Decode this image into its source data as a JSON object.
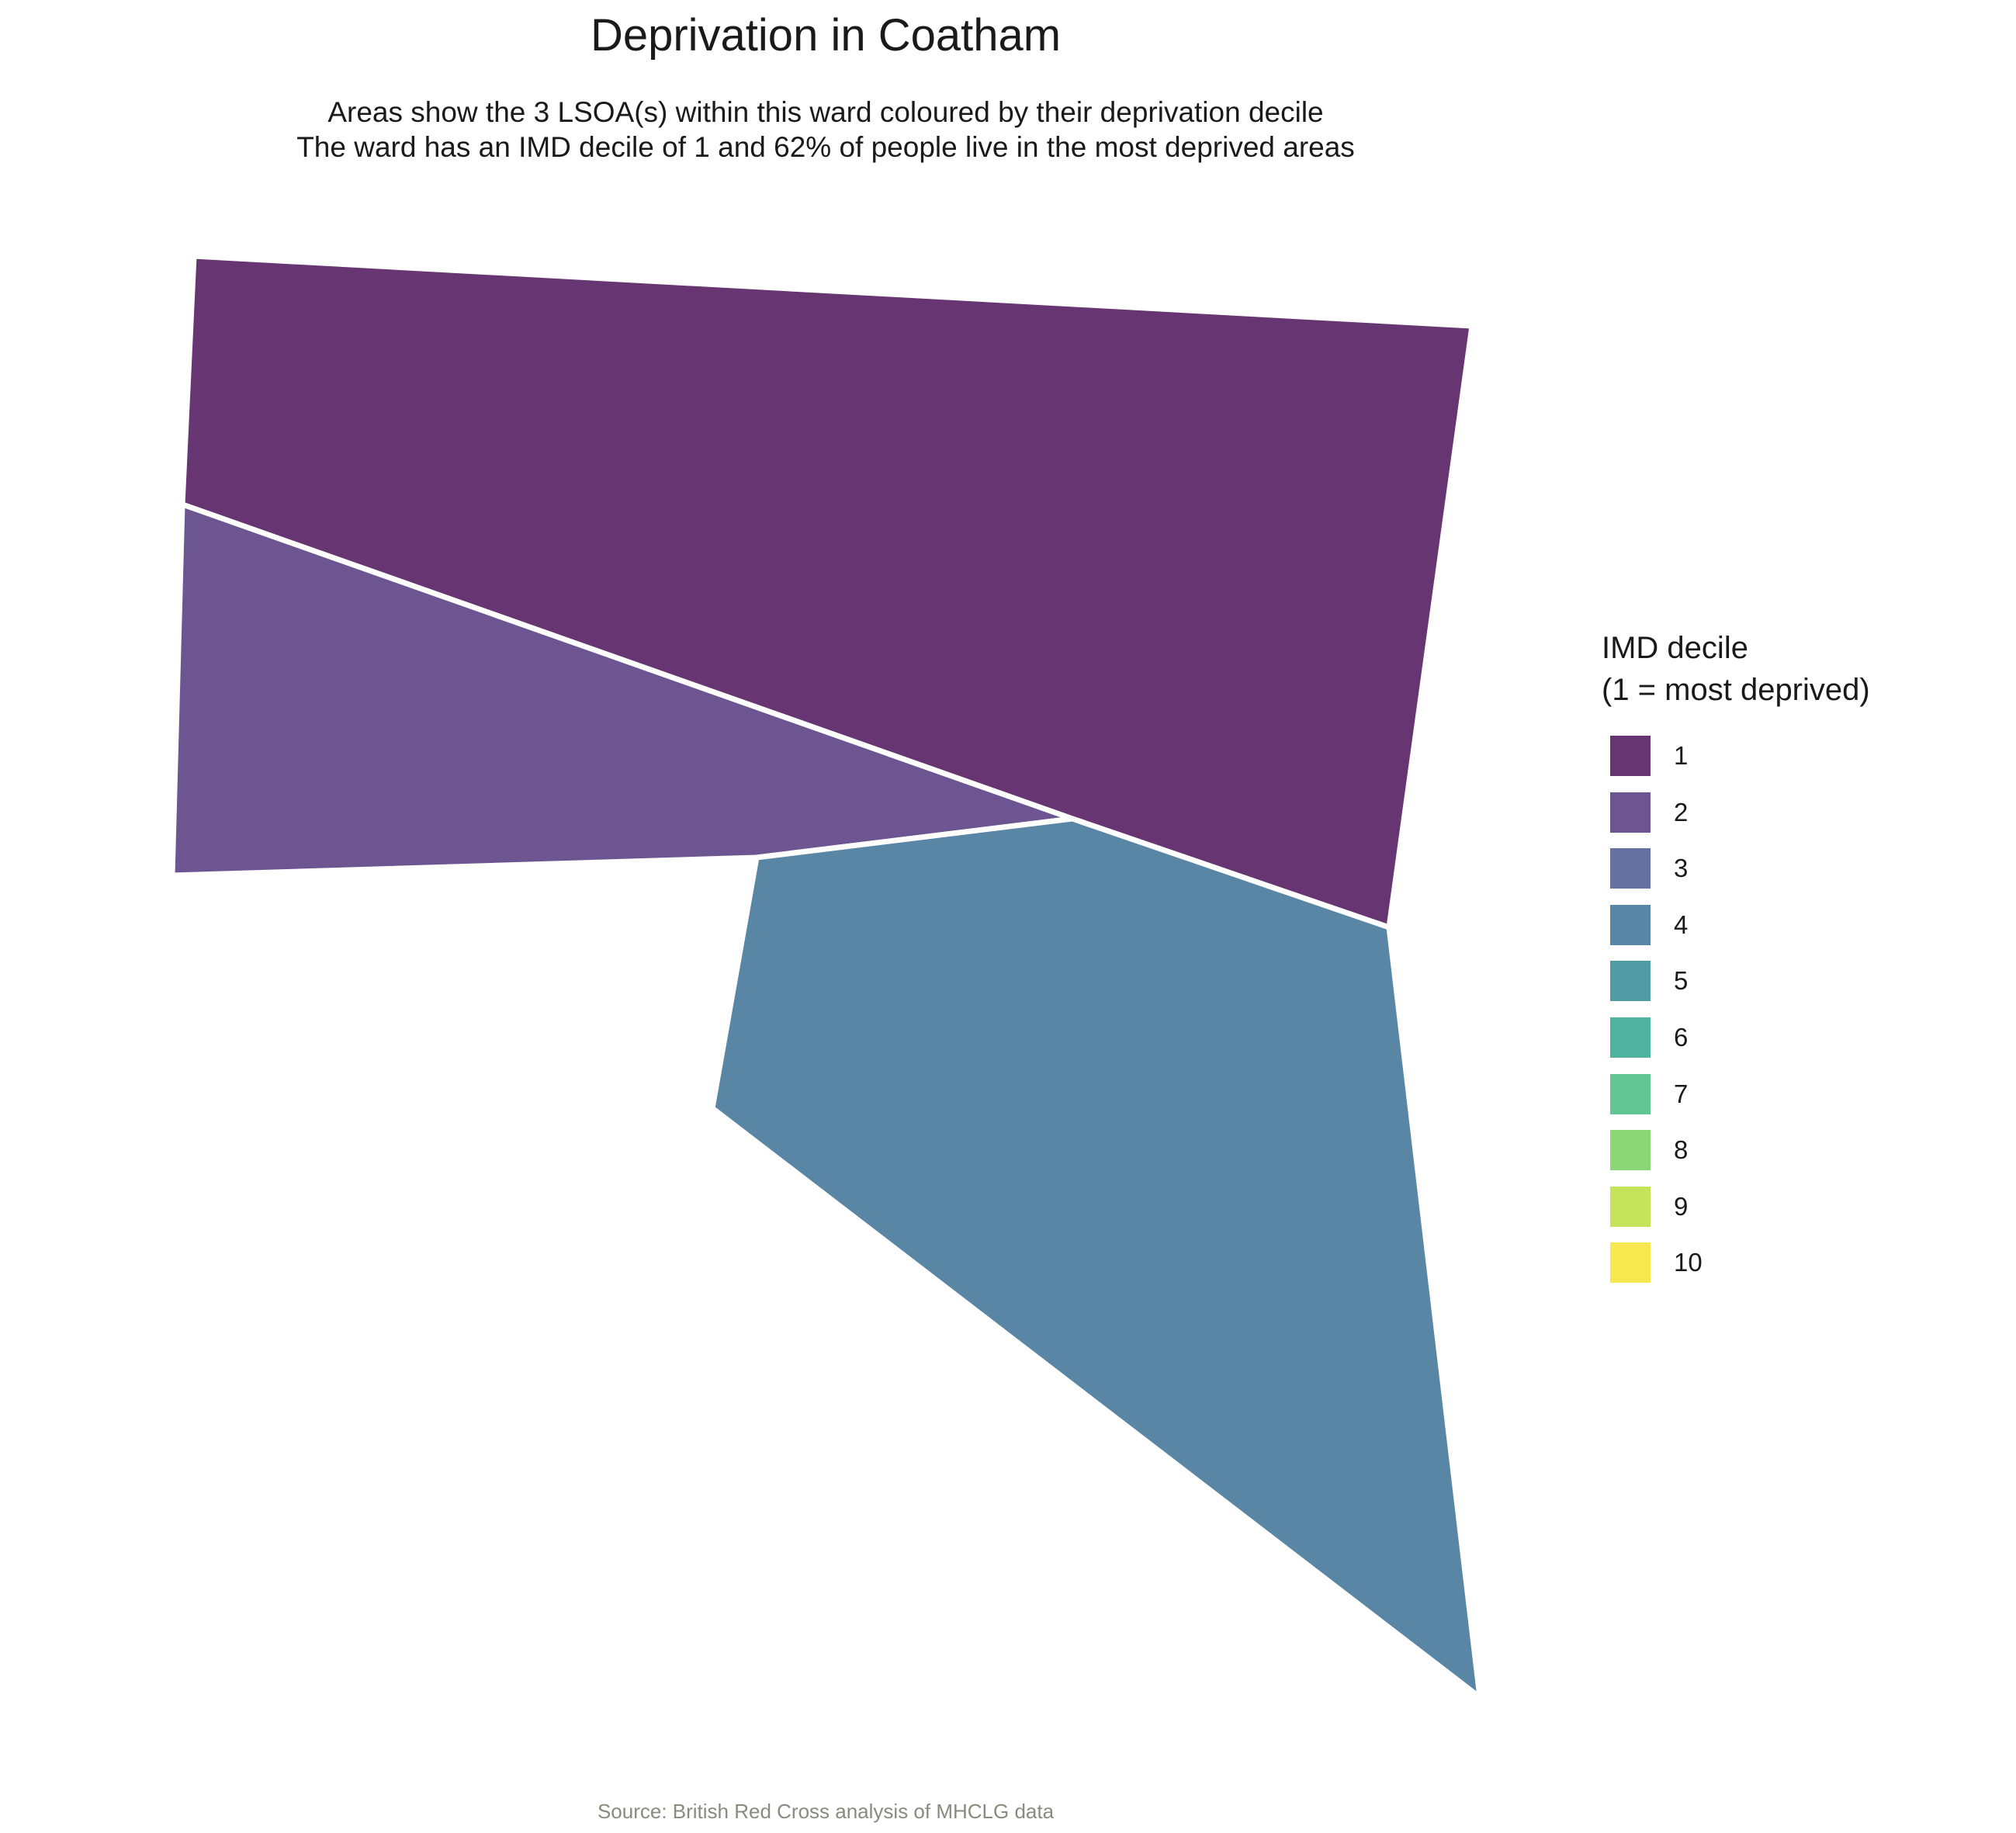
{
  "title": "Deprivation in Coatham",
  "subtitle": [
    "Areas show the 3 LSOA(s) within this ward coloured by their deprivation decile",
    "The ward has an IMD decile of 1 and 62% of people live in the most deprived areas"
  ],
  "areas": [
    {
      "decile": 1,
      "color": "#683573"
    },
    {
      "decile": 2,
      "color": "#6c5591"
    },
    {
      "decile": 4,
      "color": "#5986a5"
    }
  ],
  "boundary_color": "#ffffff",
  "legend": {
    "title_line1": "IMD decile",
    "title_line2": "(1 = most deprived)",
    "items": [
      {
        "label": "1",
        "color": "#683573"
      },
      {
        "label": "2",
        "color": "#6c5591"
      },
      {
        "label": "3",
        "color": "#6571a0"
      },
      {
        "label": "4",
        "color": "#5986a5"
      },
      {
        "label": "5",
        "color": "#519ca4"
      },
      {
        "label": "6",
        "color": "#4fb39f"
      },
      {
        "label": "7",
        "color": "#61c694"
      },
      {
        "label": "8",
        "color": "#8bd676"
      },
      {
        "label": "9",
        "color": "#c5e45a"
      },
      {
        "label": "10",
        "color": "#f8e84f"
      }
    ]
  },
  "caption": "Source: British Red Cross analysis of MHCLG data"
}
